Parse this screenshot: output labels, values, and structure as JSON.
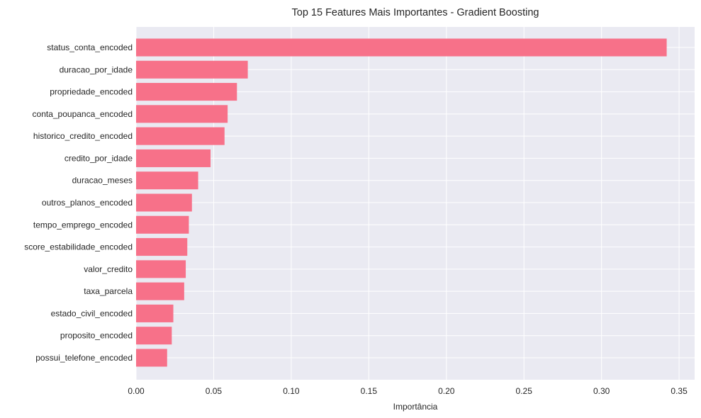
{
  "chart_data": {
    "type": "bar",
    "orientation": "horizontal",
    "title": "Top 15 Features Mais Importantes - Gradient Boosting",
    "xlabel": "Importância",
    "ylabel": "",
    "categories": [
      "status_conta_encoded",
      "duracao_por_idade",
      "propriedade_encoded",
      "conta_poupanca_encoded",
      "historico_credito_encoded",
      "credito_por_idade",
      "duracao_meses",
      "outros_planos_encoded",
      "tempo_emprego_encoded",
      "score_estabilidade_encoded",
      "valor_credito",
      "taxa_parcela",
      "estado_civil_encoded",
      "proposito_encoded",
      "possui_telefone_encoded"
    ],
    "values": [
      0.342,
      0.072,
      0.065,
      0.059,
      0.057,
      0.048,
      0.04,
      0.036,
      0.034,
      0.033,
      0.032,
      0.031,
      0.024,
      0.023,
      0.02
    ],
    "xlim": [
      0,
      0.36
    ],
    "xticks": [
      0.0,
      0.05,
      0.1,
      0.15,
      0.2,
      0.25,
      0.3,
      0.35
    ],
    "xtick_labels": [
      "0.00",
      "0.05",
      "0.10",
      "0.15",
      "0.20",
      "0.25",
      "0.30",
      "0.35"
    ],
    "bar_color": "#f77189",
    "plot_background": "#eaeaf2",
    "grid": true,
    "grid_color": "#ffffff",
    "legend": "none"
  }
}
